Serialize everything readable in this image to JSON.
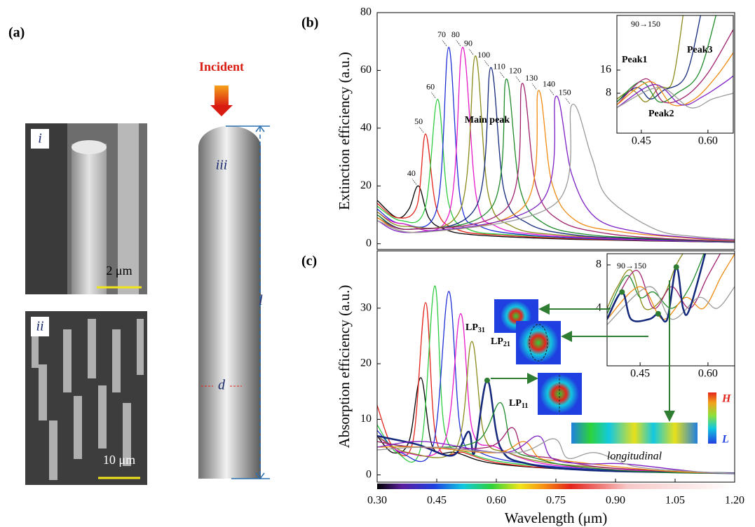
{
  "panel_a": {
    "label": "(a)",
    "sem_top": {
      "label": "i",
      "scale": "2 μm"
    },
    "sem_bottom": {
      "label": "ii",
      "scale": "10 μm"
    },
    "rod": {
      "label": "iii",
      "incident": "Incident",
      "length": "l",
      "diameter": "d"
    }
  },
  "modes": {
    "lp31": {
      "base": "LP",
      "sub": "31"
    },
    "lp21": {
      "base": "LP",
      "sub": "21"
    },
    "lp11": {
      "base": "LP",
      "sub": "11"
    },
    "longitudinal": "longitudinal",
    "scale_high": "H",
    "scale_low": "L"
  },
  "chart_data": [
    {
      "type": "line",
      "label": "(b)",
      "ylabel": "Extinction efficiency (a.u.)",
      "xlim": [
        0.3,
        1.2
      ],
      "ylim": [
        -2,
        80
      ],
      "yticks": [
        0,
        20,
        40,
        60,
        80
      ],
      "annotations": [
        "Main peak"
      ],
      "series": [
        {
          "name": "40",
          "color": "#000000",
          "x": [
            0.3,
            0.35,
            0.38,
            0.404,
            0.43,
            0.47,
            0.55,
            0.8,
            1.2
          ],
          "values": [
            15,
            9,
            12,
            20,
            9,
            5,
            3,
            1.5,
            0.5
          ]
        },
        {
          "name": "50",
          "color": "#e3241b",
          "x": [
            0.3,
            0.35,
            0.4,
            0.422,
            0.45,
            0.5,
            0.6,
            0.85,
            1.2
          ],
          "values": [
            14,
            9,
            13,
            38,
            12,
            5,
            3,
            1.5,
            0.5
          ]
        },
        {
          "name": "60",
          "color": "#2ecc40",
          "x": [
            0.3,
            0.36,
            0.42,
            0.452,
            0.48,
            0.53,
            0.65,
            0.9,
            1.2
          ],
          "values": [
            13,
            8,
            12,
            50,
            14,
            5,
            3,
            1.5,
            0.5
          ]
        },
        {
          "name": "70",
          "color": "#1f2fd6",
          "x": [
            0.3,
            0.36,
            0.45,
            0.48,
            0.51,
            0.56,
            0.68,
            0.9,
            1.2
          ],
          "values": [
            12,
            7,
            12,
            68,
            15,
            6,
            3,
            1.5,
            0.5
          ]
        },
        {
          "name": "80",
          "color": "#e619c8",
          "x": [
            0.3,
            0.36,
            0.48,
            0.515,
            0.55,
            0.6,
            0.72,
            0.95,
            1.2
          ],
          "values": [
            11,
            7,
            10,
            68,
            16,
            6,
            3,
            1.5,
            0.6
          ]
        },
        {
          "name": "90",
          "color": "#8a8a1a",
          "x": [
            0.3,
            0.37,
            0.51,
            0.547,
            0.58,
            0.64,
            0.76,
            1.0,
            1.2
          ],
          "values": [
            11,
            6,
            12,
            65,
            17,
            6,
            3,
            1.5,
            0.6
          ]
        },
        {
          "name": "100",
          "color": "#13287a",
          "x": [
            0.3,
            0.38,
            0.55,
            0.586,
            0.62,
            0.68,
            0.8,
            1.0,
            1.2
          ],
          "values": [
            10,
            5,
            13,
            61,
            18,
            7,
            3,
            1.5,
            0.7
          ]
        },
        {
          "name": "110",
          "color": "#1f8a2a",
          "x": [
            0.3,
            0.38,
            0.59,
            0.625,
            0.66,
            0.72,
            0.84,
            1.05,
            1.2
          ],
          "values": [
            10,
            5,
            13,
            57,
            19,
            7,
            3,
            1.5,
            0.8
          ]
        },
        {
          "name": "120",
          "color": "#a0206e",
          "x": [
            0.3,
            0.39,
            0.63,
            0.665,
            0.7,
            0.76,
            0.88,
            1.05,
            1.2
          ],
          "values": [
            9,
            5,
            13,
            55.5,
            20,
            8,
            3.5,
            1.6,
            0.9
          ]
        },
        {
          "name": "130",
          "color": "#f08a12",
          "x": [
            0.3,
            0.4,
            0.67,
            0.706,
            0.74,
            0.8,
            0.92,
            1.1,
            1.2
          ],
          "values": [
            9,
            4,
            13,
            53,
            21,
            8,
            4,
            1.8,
            1
          ]
        },
        {
          "name": "140",
          "color": "#7d1fc4",
          "x": [
            0.3,
            0.4,
            0.71,
            0.75,
            0.79,
            0.85,
            0.96,
            1.1,
            1.2
          ],
          "values": [
            8,
            4,
            14,
            51,
            24,
            9,
            4,
            2,
            1.2
          ]
        },
        {
          "name": "150",
          "color": "#9a9a9a",
          "x": [
            0.3,
            0.42,
            0.75,
            0.79,
            0.84,
            0.88,
            1.0,
            1.1,
            1.2
          ],
          "values": [
            8,
            4,
            14,
            48,
            30,
            16,
            5,
            2.5,
            1.5
          ]
        }
      ]
    },
    {
      "type": "line",
      "xlim": [
        0.395,
        0.657
      ],
      "ylim": [
        -5.8,
        34.9
      ],
      "xticks": [
        0.45,
        {
          "value": 0.6,
          "label": "0.60"
        }
      ],
      "yticks": [
        8,
        16
      ],
      "annotations": [
        "90→150",
        "Peak1",
        "Peak2",
        "Peak3"
      ],
      "series": [
        {
          "color": "#8a8a1a",
          "x": [
            0.395,
            0.43,
            0.46,
            0.49,
            0.52,
            0.545
          ],
          "values": [
            6,
            9,
            5,
            10,
            12,
            36
          ]
        },
        {
          "color": "#13287a",
          "x": [
            0.395,
            0.44,
            0.47,
            0.5,
            0.55,
            0.585
          ],
          "values": [
            5,
            10,
            6,
            9,
            14,
            36
          ]
        },
        {
          "color": "#1f8a2a",
          "x": [
            0.395,
            0.45,
            0.49,
            0.53,
            0.58,
            0.62
          ],
          "values": [
            5,
            12,
            5,
            8,
            15,
            36
          ]
        },
        {
          "color": "#a0206e",
          "x": [
            0.395,
            0.46,
            0.5,
            0.55,
            0.6,
            0.657
          ],
          "values": [
            4,
            13,
            5,
            7,
            15,
            30
          ]
        },
        {
          "color": "#f08a12",
          "x": [
            0.395,
            0.47,
            0.52,
            0.57,
            0.62,
            0.657
          ],
          "values": [
            4,
            12,
            4,
            6,
            14,
            22
          ]
        },
        {
          "color": "#7d1fc4",
          "x": [
            0.395,
            0.48,
            0.54,
            0.59,
            0.64,
            0.657
          ],
          "values": [
            3,
            11,
            4,
            7,
            12,
            14
          ]
        },
        {
          "color": "#9a9a9a",
          "x": [
            0.395,
            0.49,
            0.56,
            0.61,
            0.657
          ],
          "values": [
            3,
            10,
            3,
            6,
            8
          ]
        }
      ]
    },
    {
      "type": "line",
      "label": "(c)",
      "ylabel": "Absorption efficiency (a.u.)",
      "xlabel": "Wavelength (μm)",
      "xlim": [
        0.3,
        1.2
      ],
      "ylim": [
        -1.3,
        40.3
      ],
      "xticks": [
        {
          "value": 0.3,
          "label": "0.30"
        },
        0.45,
        {
          "value": 0.6,
          "label": "0.60"
        },
        0.75,
        {
          "value": 0.9,
          "label": "0.90"
        },
        1.05,
        {
          "value": 1.2,
          "label": "1.20"
        }
      ],
      "yticks": [
        0,
        10,
        20,
        30
      ],
      "points": {
        "color": "#2e7d32",
        "x": [
          0.577
        ],
        "values": [
          17
        ]
      },
      "series": [
        {
          "color": "#000000",
          "x": [
            0.3,
            0.34,
            0.38,
            0.41,
            0.44,
            0.5,
            0.6,
            0.85,
            1.2
          ],
          "values": [
            7,
            4,
            6,
            17.5,
            5,
            4,
            2,
            0.8,
            0.3
          ]
        },
        {
          "color": "#e3241b",
          "x": [
            0.3,
            0.34,
            0.39,
            0.422,
            0.45,
            0.52,
            0.62,
            0.85,
            1.2
          ],
          "values": [
            12.5,
            5,
            6,
            31,
            6,
            4,
            2,
            0.8,
            0.3
          ]
        },
        {
          "color": "#2ecc40",
          "x": [
            0.3,
            0.35,
            0.41,
            0.445,
            0.47,
            0.53,
            0.65,
            0.9,
            1.2
          ],
          "values": [
            9,
            4,
            5,
            34,
            8,
            4,
            2,
            0.8,
            0.3
          ]
        },
        {
          "color": "#1f2fd6",
          "x": [
            0.3,
            0.36,
            0.44,
            0.48,
            0.51,
            0.56,
            0.68,
            0.9,
            1.2
          ],
          "values": [
            8,
            4,
            5,
            33,
            8,
            4,
            2,
            0.8,
            0.3
          ]
        },
        {
          "color": "#e619c8",
          "x": [
            0.3,
            0.37,
            0.47,
            0.51,
            0.54,
            0.6,
            0.72,
            0.95,
            1.2
          ],
          "values": [
            7,
            4,
            6,
            29,
            8,
            5,
            2,
            0.8,
            0.3
          ]
        },
        {
          "color": "#8a8a1a",
          "x": [
            0.3,
            0.38,
            0.5,
            0.538,
            0.57,
            0.63,
            0.75,
            1.0,
            1.2
          ],
          "values": [
            7,
            4,
            5,
            24,
            7,
            4,
            2,
            0.8,
            0.3
          ]
        },
        {
          "color": "#13287a",
          "width": 2.5,
          "x": [
            0.3,
            0.4,
            0.49,
            0.53,
            0.545,
            0.577,
            0.61,
            0.68,
            0.85,
            1.2
          ],
          "values": [
            7,
            5.5,
            3.5,
            7.8,
            4,
            17,
            5,
            2,
            0.8,
            0.3
          ]
        },
        {
          "color": "#1f8a2a",
          "x": [
            0.3,
            0.4,
            0.55,
            0.61,
            0.64,
            0.7,
            0.8,
            1.0,
            1.2
          ],
          "values": [
            6,
            5,
            6,
            13,
            5,
            3,
            1.5,
            0.5,
            0.3
          ]
        },
        {
          "color": "#a0206e",
          "x": [
            0.3,
            0.4,
            0.58,
            0.64,
            0.67,
            0.74,
            0.85,
            1.05,
            1.2
          ],
          "values": [
            6,
            5,
            5,
            8.5,
            4,
            3,
            1.5,
            0.6,
            0.3
          ]
        },
        {
          "color": "#f08a12",
          "x": [
            0.3,
            0.42,
            0.6,
            0.67,
            0.71,
            0.78,
            0.9,
            1.05,
            1.2
          ],
          "values": [
            5,
            5,
            4,
            6,
            3,
            2.5,
            1.5,
            0.6,
            0.3
          ]
        },
        {
          "color": "#7d1fc4",
          "x": [
            0.3,
            0.42,
            0.62,
            0.705,
            0.74,
            0.82,
            0.92,
            1.1,
            1.2
          ],
          "values": [
            5,
            6,
            4,
            7,
            3,
            2,
            2,
            0.6,
            0.3
          ]
        },
        {
          "color": "#9a9a9a",
          "x": [
            0.3,
            0.44,
            0.65,
            0.745,
            0.78,
            0.85,
            0.95,
            1.1,
            1.2
          ],
          "values": [
            4.5,
            5,
            4,
            6.5,
            3,
            4,
            1.5,
            0.6,
            0.3
          ]
        }
      ]
    },
    {
      "type": "line",
      "xlim": [
        0.377,
        0.659
      ],
      "ylim": [
        -1.29,
        9.03
      ],
      "xticks": [
        0.45,
        {
          "value": 0.6,
          "label": "0.60"
        }
      ],
      "yticks": [
        4,
        8
      ],
      "annotations": [
        "90→150"
      ],
      "points": {
        "color": "#2e7d32",
        "x": [
          0.41,
          0.49,
          0.53
        ],
        "values": [
          5.5,
          3.5,
          7.8
        ]
      },
      "series": [
        {
          "color": "#8a8a1a",
          "x": [
            0.377,
            0.4,
            0.43,
            0.46,
            0.5,
            0.53,
            0.56
          ],
          "values": [
            4,
            6,
            7.5,
            4,
            5,
            8,
            10
          ]
        },
        {
          "color": "#1f8a2a",
          "x": [
            0.377,
            0.42,
            0.45,
            0.48,
            0.52,
            0.56,
            0.6
          ],
          "values": [
            3.5,
            7,
            5,
            5.5,
            4,
            6,
            10
          ]
        },
        {
          "color": "#a0206e",
          "x": [
            0.377,
            0.44,
            0.48,
            0.52,
            0.56,
            0.6,
            0.64
          ],
          "values": [
            3,
            7.5,
            4,
            6,
            4,
            7,
            10
          ]
        },
        {
          "color": "#f08a12",
          "x": [
            0.377,
            0.45,
            0.5,
            0.55,
            0.59,
            0.63,
            0.659
          ],
          "values": [
            3,
            6,
            3,
            5,
            4,
            7,
            9
          ]
        },
        {
          "color": "#9a9a9a",
          "x": [
            0.377,
            0.47,
            0.52,
            0.58,
            0.62,
            0.659
          ],
          "values": [
            2.5,
            6,
            3,
            5,
            4,
            6
          ]
        },
        {
          "color": "#13287a",
          "width": 2.5,
          "x": [
            0.377,
            0.41,
            0.43,
            0.47,
            0.49,
            0.51,
            0.53,
            0.545,
            0.56,
            0.6
          ],
          "values": [
            3,
            5.5,
            3,
            3,
            3.5,
            3,
            7.8,
            4,
            4,
            10
          ]
        }
      ]
    }
  ]
}
